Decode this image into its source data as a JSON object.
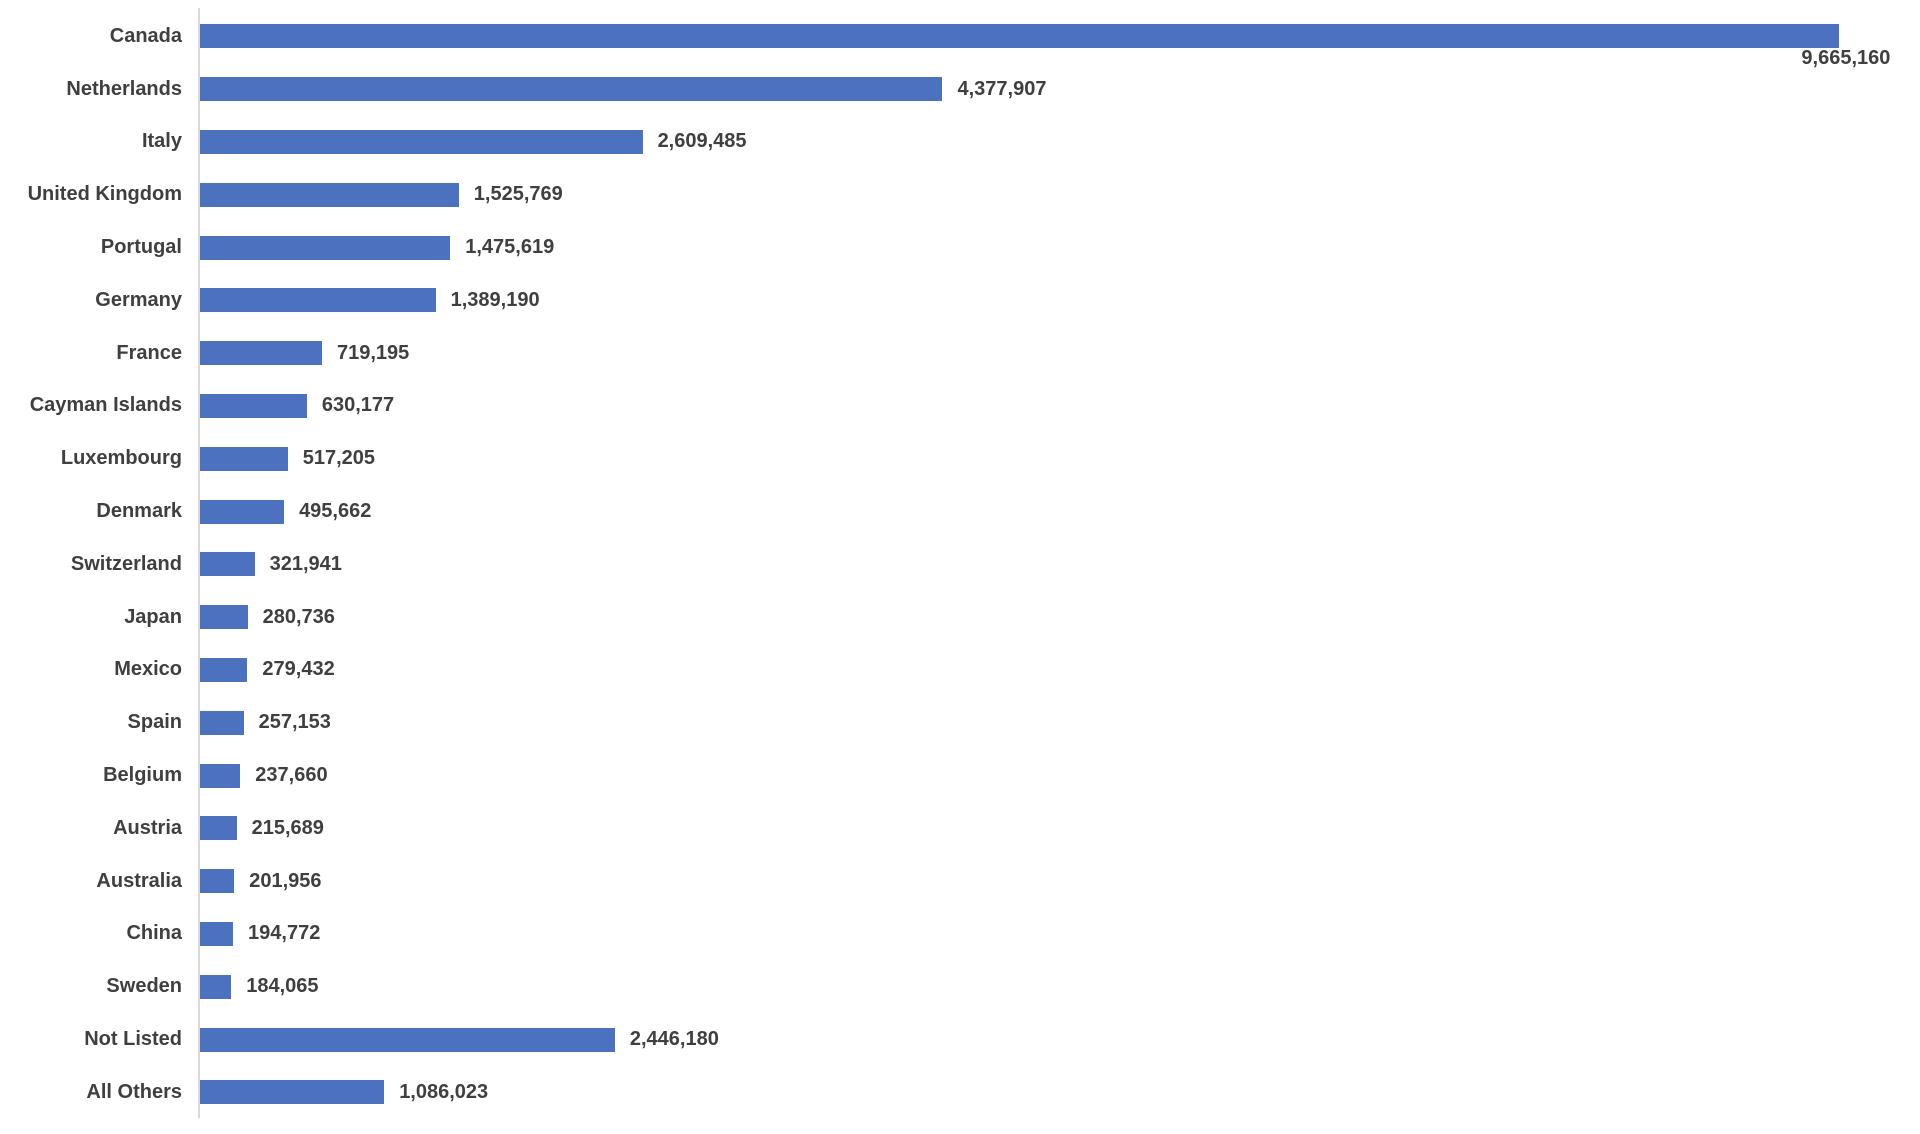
{
  "chart_data": {
    "type": "bar",
    "orientation": "horizontal",
    "title": "",
    "xlabel": "",
    "ylabel": "",
    "xlim": [
      0,
      10000000
    ],
    "grid": false,
    "legend": false,
    "bar_color": "#4c71be",
    "axis_line_color": "#d9d9d9",
    "label_color": "#3f3f3f",
    "categories": [
      "Canada",
      "Netherlands",
      "Italy",
      "United Kingdom",
      "Portugal",
      "Germany",
      "France",
      "Cayman Islands",
      "Luxembourg",
      "Denmark",
      "Switzerland",
      "Japan",
      "Mexico",
      "Spain",
      "Belgium",
      "Austria",
      "Australia",
      "China",
      "Sweden",
      "Not Listed",
      "All Others"
    ],
    "values": [
      9665160,
      4377907,
      2609485,
      1525769,
      1475619,
      1389190,
      719195,
      630177,
      517205,
      495662,
      321941,
      280736,
      279432,
      257153,
      237660,
      215689,
      201956,
      194772,
      184065,
      2446180,
      1086023
    ],
    "value_labels": [
      "9,665,160",
      "4,377,907",
      "2,609,485",
      "1,525,769",
      "1,475,619",
      "1,389,190",
      "719,195",
      "630,177",
      "517,205",
      "495,662",
      "321,941",
      "280,736",
      "279,432",
      "257,153",
      "237,660",
      "215,689",
      "201,956",
      "194,772",
      "184,065",
      "2,446,180",
      "1,086,023"
    ],
    "value_label_placements": [
      "below-end",
      "outside-end",
      "outside-end",
      "outside-end",
      "outside-end",
      "outside-end",
      "outside-end",
      "outside-end",
      "outside-end",
      "outside-end",
      "outside-end",
      "outside-end",
      "outside-end",
      "outside-end",
      "outside-end",
      "outside-end",
      "outside-end",
      "outside-end",
      "outside-end",
      "outside-end",
      "outside-end"
    ]
  }
}
